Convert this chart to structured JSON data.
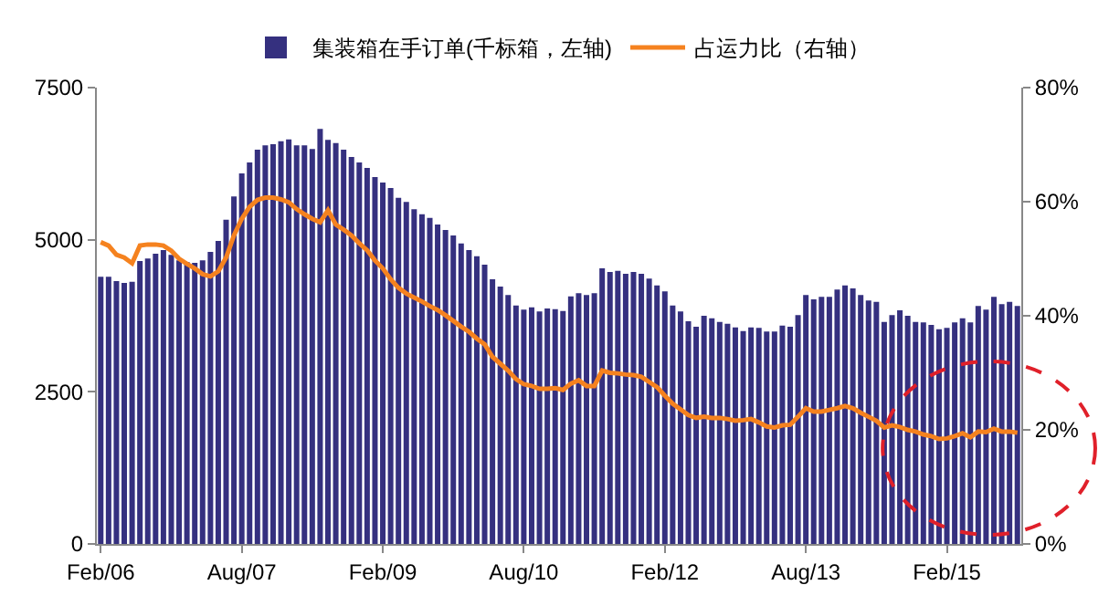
{
  "chart_data": {
    "type": "bar",
    "categories": [
      "Feb/06",
      null,
      null,
      null,
      null,
      null,
      null,
      null,
      null,
      null,
      null,
      null,
      null,
      null,
      null,
      null,
      null,
      null,
      "Aug/07",
      null,
      null,
      null,
      null,
      null,
      null,
      null,
      null,
      null,
      null,
      null,
      null,
      null,
      null,
      null,
      null,
      null,
      "Feb/09",
      null,
      null,
      null,
      null,
      null,
      null,
      null,
      null,
      null,
      null,
      null,
      null,
      null,
      null,
      null,
      null,
      null,
      "Aug/10",
      null,
      null,
      null,
      null,
      null,
      null,
      null,
      null,
      null,
      null,
      null,
      null,
      null,
      null,
      null,
      null,
      null,
      "Feb/12",
      null,
      null,
      null,
      null,
      null,
      null,
      null,
      null,
      null,
      null,
      null,
      null,
      null,
      null,
      null,
      null,
      null,
      "Aug/13",
      null,
      null,
      null,
      null,
      null,
      null,
      null,
      null,
      null,
      null,
      null,
      null,
      null,
      null,
      null,
      null,
      null,
      "Feb/15",
      null,
      null,
      null,
      null,
      null,
      null,
      null,
      null,
      null
    ],
    "series": [
      {
        "name": "集装箱在手订单(千标箱，左轴)",
        "color": "#35307f",
        "values": [
          4390,
          4390,
          4320,
          4290,
          4310,
          4650,
          4690,
          4770,
          4830,
          4750,
          4660,
          4630,
          4620,
          4660,
          4800,
          4980,
          5330,
          5710,
          6090,
          6270,
          6480,
          6550,
          6570,
          6620,
          6650,
          6550,
          6550,
          6490,
          6820,
          6640,
          6590,
          6480,
          6360,
          6270,
          6180,
          6030,
          5940,
          5850,
          5690,
          5620,
          5500,
          5420,
          5360,
          5250,
          5160,
          5070,
          4940,
          4830,
          4730,
          4590,
          4350,
          4230,
          4090,
          3920,
          3850,
          3890,
          3820,
          3870,
          3860,
          3830,
          4070,
          4120,
          4090,
          4120,
          4530,
          4470,
          4490,
          4440,
          4470,
          4440,
          4360,
          4250,
          4150,
          3920,
          3820,
          3660,
          3570,
          3750,
          3710,
          3650,
          3620,
          3560,
          3500,
          3560,
          3550,
          3490,
          3490,
          3590,
          3570,
          3760,
          4090,
          4020,
          4060,
          4060,
          4180,
          4250,
          4200,
          4090,
          4000,
          3980,
          3650,
          3760,
          3840,
          3750,
          3650,
          3640,
          3600,
          3530,
          3550,
          3640,
          3710,
          3640,
          3910,
          3850,
          4060,
          3940,
          3980,
          3910
        ]
      },
      {
        "name": "占运力比（右轴）",
        "type": "line",
        "axis": "y2",
        "color": "#f5821f",
        "values": [
          52.9,
          52.3,
          50.7,
          50.2,
          49.2,
          52.3,
          52.5,
          52.5,
          52.3,
          51.4,
          50.0,
          49.1,
          48.3,
          47.3,
          46.9,
          47.8,
          50.2,
          54.1,
          57.0,
          59.1,
          60.3,
          60.7,
          60.7,
          60.4,
          59.9,
          58.7,
          57.8,
          57.0,
          56.4,
          58.5,
          56.0,
          55.1,
          54.1,
          52.7,
          51.5,
          49.7,
          48.3,
          46.4,
          44.9,
          43.9,
          43.2,
          42.5,
          41.7,
          41.0,
          40.1,
          39.1,
          38.1,
          37.2,
          36.0,
          35.0,
          32.8,
          31.6,
          30.4,
          28.9,
          28.0,
          27.7,
          27.2,
          27.2,
          27.3,
          27.0,
          28.1,
          28.7,
          27.7,
          27.7,
          30.4,
          30.0,
          29.9,
          29.7,
          29.6,
          29.3,
          28.4,
          27.5,
          26.0,
          24.6,
          23.6,
          22.6,
          22.1,
          22.3,
          22.1,
          22.1,
          21.9,
          21.6,
          21.7,
          21.9,
          21.3,
          20.6,
          20.4,
          20.8,
          20.9,
          22.3,
          23.8,
          23.2,
          23.2,
          23.5,
          23.8,
          24.2,
          23.8,
          23.0,
          22.3,
          21.6,
          20.4,
          20.8,
          20.5,
          20.0,
          19.7,
          19.2,
          18.9,
          18.4,
          18.5,
          18.9,
          19.4,
          18.7,
          19.7,
          19.6,
          20.2,
          19.7,
          19.7,
          19.5
        ]
      }
    ],
    "ylim": [
      0,
      7500
    ],
    "yticks": [
      0,
      2500,
      5000,
      7500
    ],
    "y2lim": [
      0,
      80
    ],
    "y2ticks": [
      {
        "value": 0,
        "label": "0%"
      },
      {
        "value": 20,
        "label": "20%"
      },
      {
        "value": 40,
        "label": "40%"
      },
      {
        "value": 60,
        "label": "60%"
      },
      {
        "value": 80,
        "label": "80%"
      }
    ],
    "legend": "top",
    "marker": "none",
    "line_style": "solid"
  }
}
